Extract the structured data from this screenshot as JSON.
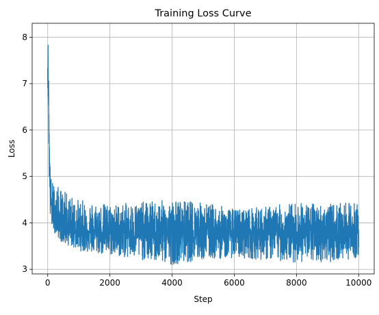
{
  "chart_data": {
    "type": "line",
    "title": "Training Loss Curve",
    "xlabel": "Step",
    "ylabel": "Loss",
    "xlim": [
      -500,
      10500
    ],
    "ylim": [
      2.9,
      8.3
    ],
    "xticks": [
      0,
      2000,
      4000,
      6000,
      8000,
      10000
    ],
    "yticks": [
      3,
      4,
      5,
      6,
      7,
      8
    ],
    "grid": true,
    "series": [
      {
        "color": "#1f77b4",
        "points": 10000,
        "x": [
          0,
          20,
          40,
          60,
          80,
          100,
          150,
          200,
          300,
          400,
          500,
          700,
          1000,
          1500,
          2000,
          3000,
          4000,
          5000,
          6000,
          7000,
          8000,
          9000,
          10000
        ],
        "mean": [
          7.4,
          6.9,
          6.0,
          5.2,
          4.7,
          4.45,
          4.25,
          4.15,
          4.05,
          3.98,
          3.93,
          3.88,
          3.84,
          3.81,
          3.8,
          3.79,
          3.78,
          3.78,
          3.78,
          3.78,
          3.78,
          3.78,
          3.78
        ],
        "band_upper": [
          8.1,
          7.9,
          6.9,
          5.9,
          5.2,
          5.0,
          4.9,
          4.85,
          4.8,
          4.75,
          4.7,
          4.6,
          4.5,
          4.45,
          4.4,
          4.45,
          4.5,
          4.45,
          4.3,
          4.35,
          4.45,
          4.4,
          4.45
        ],
        "band_lower": [
          7.0,
          6.5,
          5.2,
          4.5,
          4.1,
          3.95,
          3.85,
          3.8,
          3.72,
          3.62,
          3.55,
          3.5,
          3.4,
          3.33,
          3.3,
          3.2,
          3.1,
          3.2,
          3.25,
          3.2,
          3.15,
          3.15,
          3.25
        ]
      }
    ]
  }
}
